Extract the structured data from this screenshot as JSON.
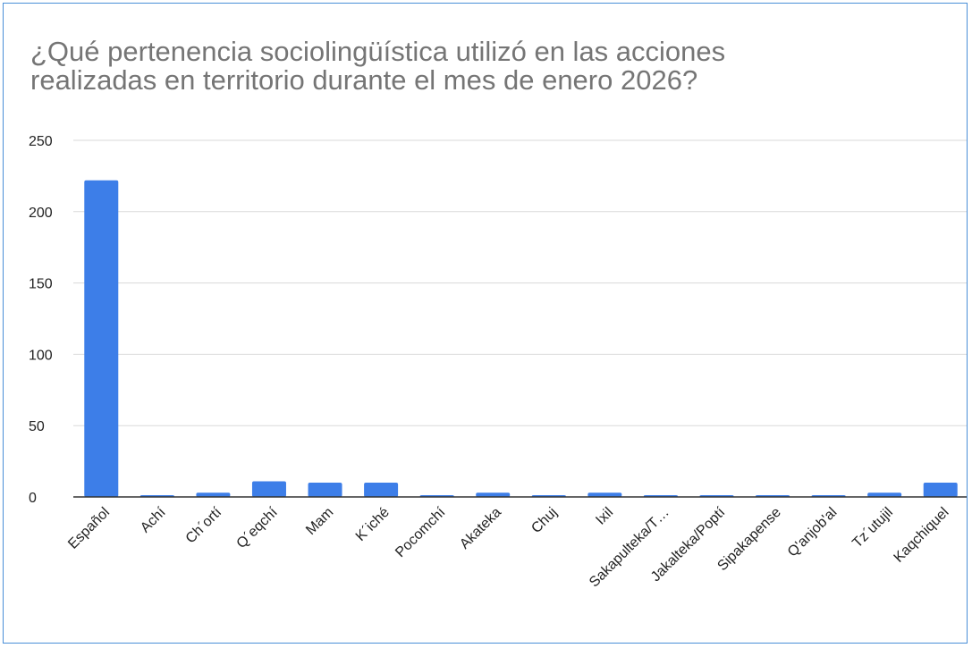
{
  "chart_data": {
    "type": "bar",
    "title": "¿Qué pertenencia sociolingüística  utilizó en las acciones\nrealizadas en territorio  durante el mes de enero 2026?",
    "xlabel": "",
    "ylabel": "",
    "categories": [
      "Español",
      "Achí",
      "Ch´ortí",
      "Q´eqchí",
      "Mam",
      "K´iché",
      "Pocomchí",
      "Akateka",
      "Chuj",
      "Ixil",
      "Sakapulteka/T…",
      "Jakalteka/Poptí",
      "Sipakapense",
      "Q'anjob'al",
      "Tz´utujil",
      "Kaqchiquel"
    ],
    "values": [
      222,
      1,
      3,
      11,
      10,
      10,
      1,
      3,
      1,
      3,
      1,
      1,
      1,
      1,
      3,
      10
    ],
    "ylim": [
      0,
      250
    ],
    "yticks": [
      0,
      50,
      100,
      150,
      200,
      250
    ],
    "grid": true,
    "legend": "none",
    "bar_color": "#3d7ee8"
  }
}
